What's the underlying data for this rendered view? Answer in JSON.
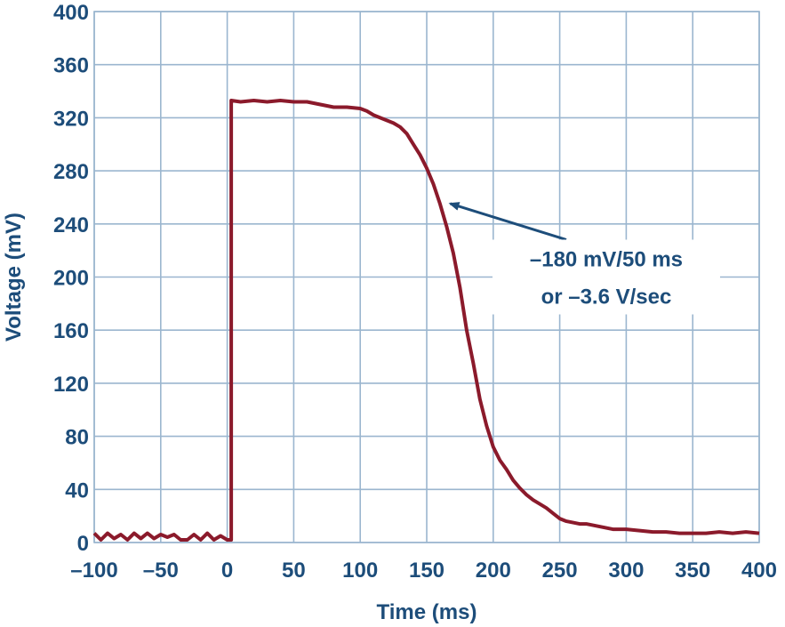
{
  "chart_data": {
    "type": "line",
    "xlabel": "Time (ms)",
    "ylabel": "Voltage (mV)",
    "xlim": [
      -100,
      400
    ],
    "ylim": [
      0,
      400
    ],
    "xticks": [
      -100,
      -50,
      0,
      50,
      100,
      150,
      200,
      250,
      300,
      350,
      400
    ],
    "yticks": [
      0,
      40,
      80,
      120,
      160,
      200,
      240,
      280,
      320,
      360,
      400
    ],
    "xtick_labels": [
      "–100",
      "–50",
      "0",
      "50",
      "100",
      "150",
      "200",
      "250",
      "300",
      "350",
      "400"
    ],
    "ytick_labels": [
      "0",
      "40",
      "80",
      "120",
      "160",
      "200",
      "240",
      "280",
      "320",
      "360",
      "400"
    ],
    "grid": true,
    "line_color": "#8b1a2b",
    "series": [
      {
        "x": [
          -100,
          -95,
          -90,
          -85,
          -80,
          -75,
          -70,
          -65,
          -60,
          -55,
          -50,
          -45,
          -40,
          -35,
          -30,
          -25,
          -20,
          -15,
          -10,
          -5,
          0,
          3,
          3,
          10,
          20,
          30,
          40,
          50,
          60,
          70,
          80,
          90,
          100,
          105,
          110,
          115,
          120,
          125,
          130,
          135,
          140,
          145,
          150,
          155,
          160,
          165,
          170,
          175,
          180,
          185,
          190,
          195,
          200,
          205,
          210,
          215,
          220,
          225,
          230,
          235,
          240,
          245,
          250,
          255,
          260,
          265,
          270,
          275,
          280,
          290,
          300,
          310,
          320,
          330,
          340,
          350,
          360,
          370,
          380,
          390,
          400
        ],
        "y": [
          7,
          2,
          7,
          3,
          6,
          2,
          7,
          3,
          7,
          3,
          6,
          4,
          6,
          2,
          2,
          6,
          2,
          7,
          2,
          5,
          2,
          2,
          333,
          332,
          333,
          332,
          333,
          332,
          332,
          330,
          328,
          328,
          327,
          325,
          322,
          320,
          318,
          316,
          313,
          308,
          300,
          292,
          282,
          270,
          255,
          238,
          218,
          192,
          160,
          135,
          108,
          88,
          72,
          62,
          55,
          47,
          41,
          36,
          32,
          29,
          26,
          22,
          18,
          16,
          15,
          14,
          14,
          13,
          12,
          10,
          10,
          9,
          8,
          8,
          7,
          7,
          7,
          8,
          7,
          8,
          7
        ]
      }
    ],
    "annotations": [
      {
        "text_lines": [
          "–180 mV/50 ms",
          "or –3.6 V/sec"
        ],
        "arrow_to": [
          165,
          258
        ],
        "text_at": [
          285,
          200
        ]
      }
    ]
  }
}
